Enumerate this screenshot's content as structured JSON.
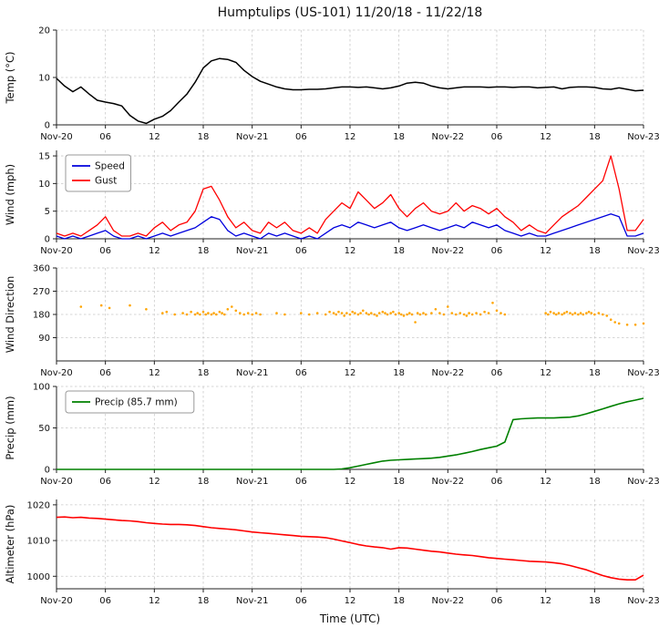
{
  "title": "Humptulips (US-101) 11/20/18 - 11/22/18",
  "xlabel": "Time (UTC)",
  "hours": [
    0,
    1,
    2,
    3,
    4,
    5,
    6,
    7,
    8,
    9,
    10,
    11,
    12,
    13,
    14,
    15,
    16,
    17,
    18,
    19,
    20,
    21,
    22,
    23,
    24,
    25,
    26,
    27,
    28,
    29,
    30,
    31,
    32,
    33,
    34,
    35,
    36,
    37,
    38,
    39,
    40,
    41,
    42,
    43,
    44,
    45,
    46,
    47,
    48,
    49,
    50,
    51,
    52,
    53,
    54,
    55,
    56,
    57,
    58,
    59,
    60,
    61,
    62,
    63,
    64,
    65,
    66,
    67,
    68,
    69,
    70,
    71,
    72
  ],
  "x_ticks": {
    "positions": [
      0,
      6,
      12,
      18,
      24,
      30,
      36,
      42,
      48,
      54,
      60,
      66,
      72
    ],
    "labels": [
      "Nov-20",
      "06",
      "12",
      "18",
      "Nov-21",
      "06",
      "12",
      "18",
      "Nov-22",
      "06",
      "12",
      "18",
      "Nov-23"
    ]
  },
  "colors": {
    "temp": "#000000",
    "speed": "#0000dd",
    "gust": "#ff0000",
    "wind_dir": "#ffa500",
    "precip": "#008000",
    "altimeter": "#ff0000",
    "grid": "#c9c9c9"
  },
  "chart_data": [
    {
      "id": "temp",
      "type": "line",
      "ylabel": "Temp (°C)",
      "ylim": [
        0,
        20
      ],
      "yticks": [
        0,
        10,
        20
      ],
      "legend": false,
      "series": [
        {
          "name": "Temp",
          "color": "#000000",
          "width": 1.5,
          "values": [
            9.8,
            8.2,
            7.0,
            8.0,
            6.5,
            5.2,
            4.8,
            4.5,
            4.0,
            2.0,
            0.8,
            0.3,
            1.2,
            1.8,
            3.0,
            4.8,
            6.5,
            9.0,
            12.0,
            13.5,
            14.0,
            13.8,
            13.2,
            11.5,
            10.2,
            9.2,
            8.6,
            8.0,
            7.6,
            7.4,
            7.4,
            7.5,
            7.5,
            7.6,
            7.8,
            8.0,
            8.0,
            7.9,
            8.0,
            7.8,
            7.6,
            7.8,
            8.2,
            8.8,
            9.0,
            8.8,
            8.2,
            7.8,
            7.6,
            7.8,
            8.0,
            8.0,
            8.0,
            7.9,
            8.0,
            8.0,
            7.9,
            8.0,
            8.0,
            7.8,
            7.9,
            8.0,
            7.6,
            7.9,
            8.0,
            8.0,
            7.9,
            7.6,
            7.5,
            7.8,
            7.5,
            7.2,
            7.3
          ]
        }
      ]
    },
    {
      "id": "wind",
      "type": "line",
      "ylabel": "Wind (mph)",
      "ylim": [
        0,
        16
      ],
      "yticks": [
        0,
        5,
        10,
        15
      ],
      "legend": true,
      "series": [
        {
          "name": "Speed",
          "color": "#0000dd",
          "width": 1.3,
          "values": [
            0.5,
            0,
            0.5,
            0,
            0.5,
            1,
            1.5,
            0.5,
            0,
            0,
            0.5,
            0,
            0.5,
            1,
            0.5,
            1,
            1.5,
            2,
            3,
            4,
            3.5,
            1.5,
            0.5,
            1,
            0.5,
            0,
            1,
            0.5,
            1,
            0.5,
            0,
            0.5,
            0,
            1,
            2,
            2.5,
            2,
            3,
            2.5,
            2,
            2.5,
            3,
            2,
            1.5,
            2,
            2.5,
            2,
            1.5,
            2,
            2.5,
            2,
            3,
            2.5,
            2,
            2.5,
            1.5,
            1,
            0.5,
            1,
            0.5,
            0.5,
            1,
            1.5,
            2,
            2.5,
            3,
            3.5,
            4,
            4.5,
            4,
            0.5,
            0.5,
            1
          ]
        },
        {
          "name": "Gust",
          "color": "#ff0000",
          "width": 1.3,
          "values": [
            1,
            0.5,
            1,
            0.5,
            1.5,
            2.5,
            4,
            1.5,
            0.5,
            0.5,
            1,
            0.5,
            2,
            3,
            1.5,
            2.5,
            3,
            5,
            9,
            9.5,
            7,
            4,
            2,
            3,
            1.5,
            1,
            3,
            2,
            3,
            1.5,
            1,
            2,
            1,
            3.5,
            5,
            6.5,
            5.5,
            8.5,
            7,
            5.5,
            6.5,
            8,
            5.5,
            4,
            5.5,
            6.5,
            5,
            4.5,
            5,
            6.5,
            5,
            6,
            5.5,
            4.5,
            5.5,
            4,
            3,
            1.5,
            2.5,
            1.5,
            1,
            2.5,
            4,
            5,
            6,
            7.5,
            9,
            10.5,
            15,
            9,
            1.5,
            1.5,
            3.5
          ]
        }
      ]
    },
    {
      "id": "wind-direction",
      "type": "scatter",
      "ylabel": "Wind Direction",
      "ylim": [
        0,
        360
      ],
      "yticks": [
        90,
        180,
        270,
        360
      ],
      "legend": false,
      "series": [
        {
          "name": "Wind Direction",
          "color": "#ffa500",
          "points": [
            [
              3,
              210
            ],
            [
              5.5,
              215
            ],
            [
              6.5,
              205
            ],
            [
              9,
              215
            ],
            [
              11,
              200
            ],
            [
              13,
              185
            ],
            [
              13.5,
              190
            ],
            [
              14.5,
              180
            ],
            [
              15.5,
              185
            ],
            [
              16,
              180
            ],
            [
              16.5,
              190
            ],
            [
              17,
              180
            ],
            [
              17.3,
              185
            ],
            [
              17.6,
              180
            ],
            [
              18,
              190
            ],
            [
              18.3,
              180
            ],
            [
              18.6,
              185
            ],
            [
              19,
              180
            ],
            [
              19.3,
              185
            ],
            [
              19.6,
              180
            ],
            [
              20,
              190
            ],
            [
              20.3,
              185
            ],
            [
              20.6,
              180
            ],
            [
              21,
              200
            ],
            [
              21.5,
              210
            ],
            [
              22,
              195
            ],
            [
              22.5,
              185
            ],
            [
              23,
              180
            ],
            [
              23.5,
              185
            ],
            [
              24,
              180
            ],
            [
              24.5,
              185
            ],
            [
              25,
              180
            ],
            [
              27,
              185
            ],
            [
              28,
              180
            ],
            [
              30,
              185
            ],
            [
              31,
              180
            ],
            [
              32,
              185
            ],
            [
              33,
              180
            ],
            [
              33.5,
              190
            ],
            [
              34,
              185
            ],
            [
              34.3,
              180
            ],
            [
              34.6,
              190
            ],
            [
              35,
              185
            ],
            [
              35.3,
              175
            ],
            [
              35.6,
              185
            ],
            [
              36,
              180
            ],
            [
              36.3,
              190
            ],
            [
              36.6,
              185
            ],
            [
              37,
              180
            ],
            [
              37.3,
              185
            ],
            [
              37.6,
              195
            ],
            [
              38,
              185
            ],
            [
              38.3,
              180
            ],
            [
              38.6,
              185
            ],
            [
              39,
              180
            ],
            [
              39.3,
              175
            ],
            [
              39.6,
              185
            ],
            [
              40,
              190
            ],
            [
              40.3,
              185
            ],
            [
              40.6,
              180
            ],
            [
              41,
              185
            ],
            [
              41.3,
              190
            ],
            [
              41.6,
              180
            ],
            [
              42,
              185
            ],
            [
              42.3,
              180
            ],
            [
              42.6,
              175
            ],
            [
              43,
              180
            ],
            [
              43.3,
              185
            ],
            [
              43.6,
              180
            ],
            [
              44,
              150
            ],
            [
              44.3,
              185
            ],
            [
              44.6,
              180
            ],
            [
              45,
              185
            ],
            [
              45.3,
              180
            ],
            [
              46,
              185
            ],
            [
              46.5,
              200
            ],
            [
              47,
              185
            ],
            [
              47.5,
              180
            ],
            [
              48,
              210
            ],
            [
              48.5,
              185
            ],
            [
              49,
              180
            ],
            [
              49.5,
              185
            ],
            [
              50,
              180
            ],
            [
              50.3,
              175
            ],
            [
              50.6,
              185
            ],
            [
              51,
              180
            ],
            [
              51.5,
              185
            ],
            [
              52,
              180
            ],
            [
              52.5,
              190
            ],
            [
              53,
              185
            ],
            [
              53.5,
              225
            ],
            [
              54,
              195
            ],
            [
              54.5,
              185
            ],
            [
              55,
              180
            ],
            [
              60,
              185
            ],
            [
              60.3,
              180
            ],
            [
              60.6,
              190
            ],
            [
              61,
              185
            ],
            [
              61.3,
              180
            ],
            [
              61.6,
              185
            ],
            [
              62,
              180
            ],
            [
              62.3,
              185
            ],
            [
              62.6,
              190
            ],
            [
              63,
              185
            ],
            [
              63.3,
              180
            ],
            [
              63.6,
              185
            ],
            [
              64,
              180
            ],
            [
              64.3,
              185
            ],
            [
              64.6,
              180
            ],
            [
              65,
              185
            ],
            [
              65.3,
              190
            ],
            [
              65.6,
              185
            ],
            [
              66,
              180
            ],
            [
              66.5,
              185
            ],
            [
              67,
              180
            ],
            [
              67.5,
              175
            ],
            [
              68,
              160
            ],
            [
              68.5,
              150
            ],
            [
              69,
              145
            ],
            [
              70,
              140
            ],
            [
              71,
              140
            ],
            [
              72,
              145
            ]
          ]
        }
      ]
    },
    {
      "id": "precip",
      "type": "line",
      "ylabel": "Precip (mm)",
      "ylim": [
        0,
        100
      ],
      "yticks": [
        0,
        50,
        100
      ],
      "legend": true,
      "total_shown_in_legend_mm": 85.7,
      "series": [
        {
          "name": "Precip (85.7 mm)",
          "color": "#008000",
          "width": 1.6,
          "values": [
            0,
            0,
            0,
            0,
            0,
            0,
            0,
            0,
            0,
            0,
            0,
            0,
            0,
            0,
            0,
            0,
            0,
            0,
            0,
            0,
            0,
            0,
            0,
            0,
            0,
            0,
            0,
            0,
            0,
            0,
            0,
            0,
            0,
            0,
            0,
            0.5,
            2,
            4,
            6,
            8,
            10,
            11,
            11.5,
            12,
            12.5,
            13,
            13.5,
            14.5,
            16,
            17.5,
            19.5,
            21.5,
            24,
            26,
            28,
            33,
            60,
            61,
            61.5,
            62,
            62,
            62,
            62.5,
            63,
            64.5,
            67,
            70,
            73,
            76,
            79,
            81.5,
            83.5,
            85.7
          ]
        }
      ]
    },
    {
      "id": "altimeter",
      "type": "line",
      "ylabel": "Altimeter (hPa)",
      "ylim": [
        996.5,
        1021.5
      ],
      "yticks": [
        1000,
        1010,
        1020
      ],
      "legend": false,
      "series": [
        {
          "name": "Altimeter",
          "color": "#ff0000",
          "width": 1.6,
          "values": [
            1016.5,
            1016.6,
            1016.4,
            1016.5,
            1016.3,
            1016.2,
            1016.0,
            1015.8,
            1015.6,
            1015.5,
            1015.3,
            1015.0,
            1014.8,
            1014.6,
            1014.5,
            1014.5,
            1014.4,
            1014.2,
            1013.9,
            1013.6,
            1013.4,
            1013.2,
            1013.0,
            1012.7,
            1012.4,
            1012.2,
            1012.0,
            1011.8,
            1011.6,
            1011.4,
            1011.2,
            1011.1,
            1011.0,
            1010.8,
            1010.4,
            1009.9,
            1009.4,
            1008.9,
            1008.5,
            1008.2,
            1008.0,
            1007.6,
            1008.0,
            1007.9,
            1007.6,
            1007.3,
            1007.0,
            1006.8,
            1006.5,
            1006.2,
            1006.0,
            1005.8,
            1005.5,
            1005.2,
            1005.0,
            1004.8,
            1004.6,
            1004.4,
            1004.2,
            1004.1,
            1004.0,
            1003.8,
            1003.5,
            1003.0,
            1002.4,
            1001.8,
            1001.0,
            1000.2,
            999.6,
            999.2,
            999.0,
            999.0,
            1000.3
          ]
        }
      ]
    }
  ]
}
